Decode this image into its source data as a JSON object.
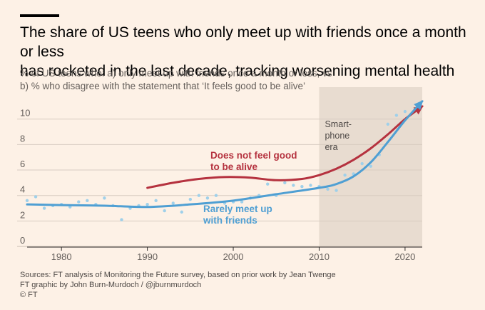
{
  "header": {
    "title_line1": "The share of US teens who only meet up with friends once a month or less",
    "title_line2": "has rocketed in the last decade, tracking worsening mental health",
    "subtitle_line1": "% of US teens who: a) only meet up with friends once a month or less, vs",
    "subtitle_line2": "b) % who disagree with the statement that ‘It feels good to be alive’"
  },
  "footer": {
    "source": "Sources: FT analysis of Monitoring the Future survey, based on prior work by Jean Twenge",
    "credit": "FT graphic by John Burn-Murdoch / @jburnmurdoch",
    "copyright": "© FT"
  },
  "colors": {
    "background": "#fdf1e6",
    "shade": "#e8dcd0",
    "grid": "#d8ccc1",
    "red": "#b5323f",
    "blue": "#4f9fd3",
    "dots": "#9fd0ea"
  },
  "chart_data": {
    "type": "line",
    "xlim": [
      1976,
      2022
    ],
    "ylim": [
      0,
      11.5
    ],
    "x_ticks": [
      1980,
      1990,
      2000,
      2010,
      2020
    ],
    "y_ticks": [
      0,
      2,
      4,
      6,
      8,
      10
    ],
    "grid": true,
    "shaded_region": {
      "x": [
        2010,
        2022
      ],
      "label_lines": [
        "Smart-",
        "phone",
        "era"
      ]
    },
    "series": [
      {
        "name_lines": [
          "Does not feel good",
          "to be alive"
        ],
        "color": "red",
        "x": [
          1990,
          1993,
          1996,
          1999,
          2002,
          2005,
          2008,
          2010,
          2012,
          2014,
          2016,
          2018,
          2020,
          2022
        ],
        "y": [
          4.6,
          5.0,
          5.3,
          5.45,
          5.4,
          5.2,
          5.3,
          5.6,
          6.1,
          6.8,
          7.7,
          8.8,
          10.0,
          11.0
        ]
      },
      {
        "name_lines": [
          "Rarely meet up",
          "with friends"
        ],
        "color": "blue",
        "x": [
          1976,
          1980,
          1985,
          1990,
          1995,
          2000,
          2005,
          2010,
          2012,
          2014,
          2016,
          2018,
          2020,
          2022
        ],
        "y": [
          3.3,
          3.25,
          3.2,
          3.1,
          3.3,
          3.6,
          4.1,
          4.6,
          4.9,
          5.5,
          6.6,
          8.2,
          9.9,
          11.4
        ]
      }
    ],
    "scatter": {
      "x": [
        1976,
        1977,
        1978,
        1979,
        1980,
        1981,
        1982,
        1983,
        1984,
        1985,
        1986,
        1987,
        1988,
        1989,
        1990,
        1991,
        1992,
        1993,
        1994,
        1995,
        1996,
        1997,
        1998,
        1999,
        2000,
        2001,
        2002,
        2003,
        2004,
        2005,
        2006,
        2007,
        2008,
        2009,
        2010,
        2011,
        2012,
        2013,
        2014,
        2015,
        2016,
        2017,
        2018,
        2019,
        2020
      ],
      "y": [
        3.6,
        3.9,
        3.0,
        3.2,
        3.3,
        3.1,
        3.5,
        3.6,
        3.3,
        3.8,
        3.2,
        2.1,
        3.0,
        3.2,
        3.3,
        3.6,
        2.8,
        3.4,
        2.7,
        3.7,
        4.0,
        3.8,
        4.0,
        3.4,
        3.5,
        3.5,
        3.8,
        4.0,
        4.9,
        4.0,
        5.0,
        4.8,
        4.7,
        4.8,
        4.7,
        4.5,
        4.4,
        5.6,
        5.7,
        6.5,
        6.3,
        7.2,
        9.6,
        10.3,
        10.6
      ]
    }
  }
}
